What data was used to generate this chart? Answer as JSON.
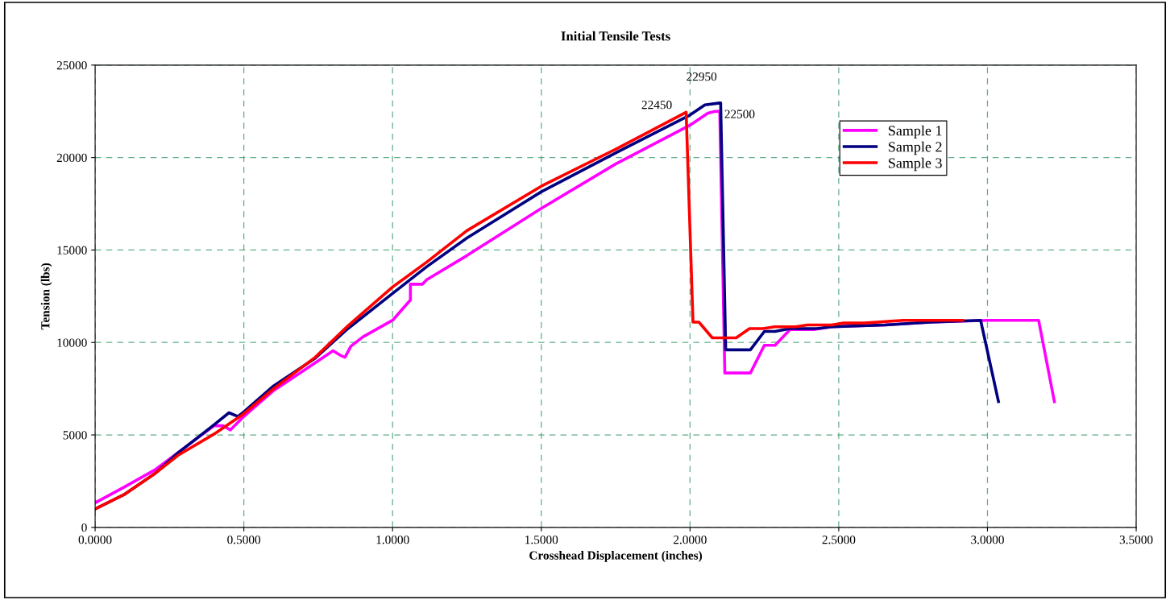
{
  "chart_data": {
    "type": "line",
    "title": "Initial Tensile Tests",
    "xlabel": "Crosshead Displacement (inches)",
    "ylabel": "Tension (lbs)",
    "xlim": [
      0,
      3.5
    ],
    "ylim": [
      0,
      25000
    ],
    "xticks": [
      {
        "value": 0,
        "label": "0.0000"
      },
      {
        "value": 0.5,
        "label": "0.5000"
      },
      {
        "value": 1,
        "label": "1.0000"
      },
      {
        "value": 1.5,
        "label": "1.5000"
      },
      {
        "value": 2,
        "label": "2.0000"
      },
      {
        "value": 2.5,
        "label": "2.5000"
      },
      {
        "value": 3,
        "label": "3.0000"
      },
      {
        "value": 3.5,
        "label": "3.5000"
      }
    ],
    "yticks": [
      0,
      5000,
      10000,
      15000,
      20000,
      25000
    ],
    "grid": true,
    "legend": "top right",
    "marker": "none",
    "line_style": "solid",
    "series": [
      {
        "name": "Sample 1",
        "color": "#ff00ff",
        "x": [
          0,
          0.1,
          0.2,
          0.3,
          0.4,
          0.43,
          0.455,
          0.5,
          0.6,
          0.74,
          0.8,
          0.825,
          0.84,
          0.86,
          0.9,
          1.0,
          1.06,
          1.06,
          1.1,
          1.115,
          1.25,
          1.5,
          1.75,
          2.0,
          2.06,
          2.085,
          2.1,
          2.117,
          2.203,
          2.25,
          2.286,
          2.336,
          2.416,
          2.476,
          2.656,
          2.807,
          3.0,
          3.172,
          3.225
        ],
        "values": [
          1330,
          2200,
          3100,
          4300,
          5500,
          5500,
          5270,
          6000,
          7400,
          8900,
          9550,
          9300,
          9200,
          9800,
          10300,
          11200,
          12300,
          13150,
          13150,
          13400,
          14700,
          17250,
          19650,
          21750,
          22400,
          22500,
          22500,
          8350,
          8350,
          9850,
          9850,
          10700,
          10700,
          10850,
          10950,
          11100,
          11200,
          11200,
          6800
        ]
      },
      {
        "name": "Sample 2",
        "color": "#000080",
        "x": [
          0,
          0.1,
          0.2,
          0.28,
          0.4,
          0.45,
          0.48,
          0.5,
          0.6,
          0.74,
          0.85,
          1.0,
          1.115,
          1.25,
          1.5,
          1.75,
          2.0,
          2.05,
          2.1,
          2.103,
          2.12,
          2.203,
          2.25,
          2.286,
          2.336,
          2.426,
          2.476,
          2.656,
          2.807,
          2.977,
          3.037
        ],
        "values": [
          1000,
          1800,
          2900,
          4050,
          5550,
          6200,
          6000,
          6250,
          7650,
          9150,
          10750,
          12650,
          14100,
          15650,
          18150,
          20250,
          22300,
          22850,
          22950,
          22950,
          9600,
          9600,
          10600,
          10600,
          10750,
          10750,
          10850,
          10950,
          11100,
          11200,
          6800
        ]
      },
      {
        "name": "Sample 3",
        "color": "#ff0000",
        "x": [
          0,
          0.1,
          0.2,
          0.279,
          0.4,
          0.5,
          0.6,
          0.74,
          0.85,
          1.0,
          1.115,
          1.25,
          1.5,
          1.75,
          1.987,
          2.01,
          2.03,
          2.075,
          2.155,
          2.2,
          2.245,
          2.285,
          2.355,
          2.395,
          2.476,
          2.516,
          2.586,
          2.716,
          2.917
        ],
        "values": [
          1000,
          1800,
          2900,
          3900,
          5050,
          6150,
          7500,
          9200,
          10900,
          13000,
          14350,
          16050,
          18450,
          20450,
          22450,
          11100,
          11100,
          10250,
          10250,
          10750,
          10750,
          10850,
          10850,
          10950,
          10950,
          11050,
          11050,
          11200,
          11200
        ]
      }
    ],
    "annotations": [
      {
        "text": "22450",
        "x": 1.987,
        "y": 22450
      },
      {
        "text": "22950",
        "x": 2.1,
        "y": 22950
      },
      {
        "text": "22500",
        "x": 2.085,
        "y": 22500
      }
    ]
  }
}
